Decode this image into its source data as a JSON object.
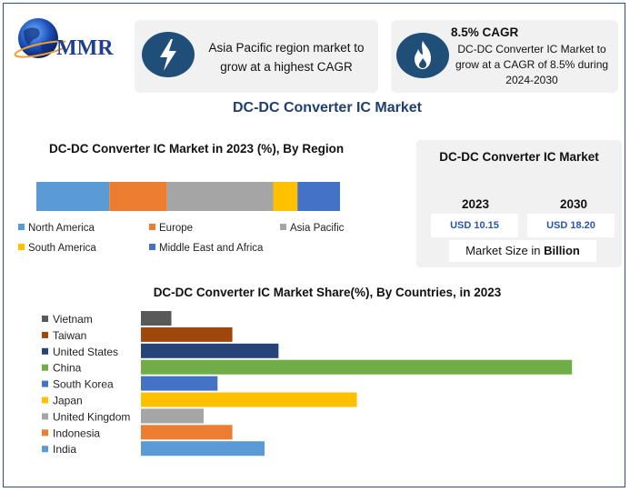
{
  "logo": {
    "text": "MMR"
  },
  "highlight": {
    "text": "Asia Pacific region market to grow at a highest CAGR",
    "icon": "lightning-bolt-icon"
  },
  "cagr": {
    "title": "8.5% CAGR",
    "text": "DC-DC Converter IC Market to grow at a CAGR of 8.5% during 2024-2030",
    "icon": "flame-icon"
  },
  "main_title": "DC-DC Converter IC Market",
  "market_size": {
    "title": "DC-DC Converter IC Market",
    "year_start": "2023",
    "year_end": "2030",
    "value_start": "USD 10.15",
    "value_end": "USD 18.20",
    "unit_prefix": "Market Size in ",
    "unit_bold": "Billion"
  },
  "colors": {
    "accent_dark": "#1f4e79",
    "panel_bg": "#f1f1f1"
  },
  "chart_data": [
    {
      "type": "bar",
      "stacked": true,
      "orientation": "horizontal",
      "title": "DC-DC Converter IC Market in 2023 (%), By Region",
      "categories": [
        "2023"
      ],
      "series": [
        {
          "name": "North America",
          "values": [
            24
          ],
          "color": "#5b9bd5"
        },
        {
          "name": "Europe",
          "values": [
            19
          ],
          "color": "#ed7d31"
        },
        {
          "name": "Asia Pacific",
          "values": [
            35
          ],
          "color": "#a5a5a5"
        },
        {
          "name": "South America",
          "values": [
            8
          ],
          "color": "#ffc000"
        },
        {
          "name": "Middle East and Africa",
          "values": [
            14
          ],
          "color": "#4472c4"
        }
      ],
      "xlim": [
        0,
        100
      ],
      "legend": "bottom",
      "grid": false
    },
    {
      "type": "bar",
      "orientation": "horizontal",
      "title": "DC-DC Converter IC Market Share(%), By Countries, in 2023",
      "categories": [
        "Vietnam",
        "Taiwan",
        "United States",
        "China",
        "South Korea",
        "Japan",
        "United Kingdom",
        "Indonesia",
        "India"
      ],
      "values": [
        3.5,
        10.5,
        15.8,
        49.5,
        8.8,
        24.8,
        7.2,
        10.5,
        14.2
      ],
      "colors": [
        "#595959",
        "#9e480e",
        "#264478",
        "#70ad47",
        "#4472c4",
        "#ffc000",
        "#a5a5a5",
        "#ed7d31",
        "#5b9bd5"
      ],
      "xlim": [
        0,
        50
      ],
      "legend": "left",
      "grid": false
    }
  ]
}
